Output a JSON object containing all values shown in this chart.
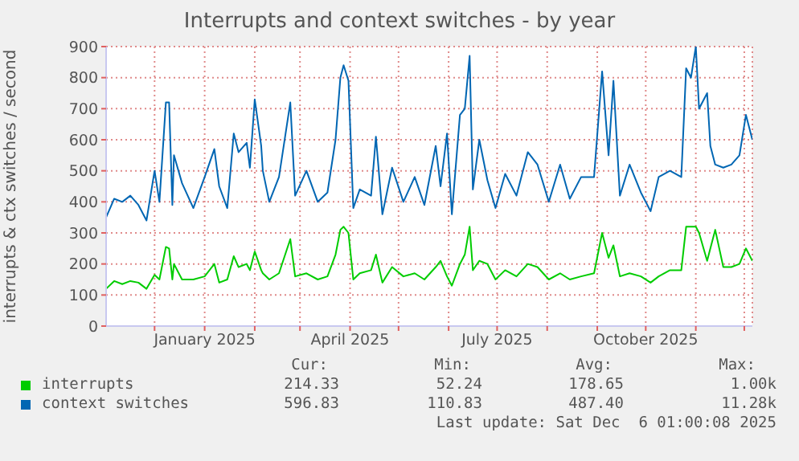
{
  "chart_data": {
    "type": "line",
    "title": "Interrupts and context switches - by year",
    "ylabel": "interrupts & ctx switches / second",
    "x": [
      "2024-11-01",
      "2024-11-06",
      "2024-11-11",
      "2024-11-16",
      "2024-11-21",
      "2024-11-26",
      "2024-12-01",
      "2024-12-04",
      "2024-12-08",
      "2024-12-10",
      "2024-12-12",
      "2024-12-13",
      "2024-12-18",
      "2024-12-25",
      "2025-01-01",
      "2025-01-07",
      "2025-01-10",
      "2025-01-15",
      "2025-01-19",
      "2025-01-22",
      "2025-01-27",
      "2025-01-29",
      "2025-02-01",
      "2025-02-05",
      "2025-02-06",
      "2025-02-10",
      "2025-02-16",
      "2025-02-23",
      "2025-02-26",
      "2025-03-05",
      "2025-03-12",
      "2025-03-18",
      "2025-03-23",
      "2025-03-26",
      "2025-03-28",
      "2025-03-31",
      "2025-04-03",
      "2025-04-07",
      "2025-04-14",
      "2025-04-17",
      "2025-04-21",
      "2025-04-27",
      "2025-05-04",
      "2025-05-11",
      "2025-05-17",
      "2025-05-24",
      "2025-05-27",
      "2025-05-31",
      "2025-06-03",
      "2025-06-08",
      "2025-06-11",
      "2025-06-14",
      "2025-06-16",
      "2025-06-20",
      "2025-06-25",
      "2025-06-30",
      "2025-07-06",
      "2025-07-13",
      "2025-07-20",
      "2025-07-26",
      "2025-08-02",
      "2025-08-09",
      "2025-08-15",
      "2025-08-22",
      "2025-08-30",
      "2025-09-04",
      "2025-09-08",
      "2025-09-11",
      "2025-09-15",
      "2025-09-21",
      "2025-09-28",
      "2025-10-04",
      "2025-10-09",
      "2025-10-16",
      "2025-10-23",
      "2025-10-26",
      "2025-10-29",
      "2025-11-01",
      "2025-11-03",
      "2025-11-08",
      "2025-11-10",
      "2025-11-13",
      "2025-11-18",
      "2025-11-23",
      "2025-11-28",
      "2025-12-02",
      "2025-12-06"
    ],
    "series": [
      {
        "name": "interrupts",
        "color": "#00cc00",
        "values": [
          120,
          145,
          135,
          145,
          140,
          120,
          165,
          150,
          255,
          250,
          150,
          200,
          150,
          150,
          160,
          200,
          140,
          150,
          225,
          190,
          200,
          180,
          240,
          180,
          170,
          150,
          170,
          280,
          160,
          170,
          150,
          160,
          230,
          310,
          320,
          300,
          150,
          170,
          180,
          230,
          140,
          190,
          160,
          170,
          150,
          190,
          210,
          160,
          130,
          200,
          230,
          320,
          180,
          210,
          200,
          150,
          180,
          160,
          200,
          190,
          150,
          170,
          150,
          160,
          170,
          300,
          220,
          260,
          160,
          170,
          160,
          140,
          160,
          180,
          180,
          320,
          320,
          320,
          300,
          210,
          250,
          310,
          190,
          190,
          200,
          250,
          210
        ]
      },
      {
        "name": "context switches",
        "color": "#0066b3",
        "values": [
          350,
          410,
          400,
          420,
          390,
          340,
          500,
          400,
          720,
          720,
          390,
          550,
          460,
          380,
          480,
          570,
          450,
          380,
          620,
          560,
          590,
          510,
          730,
          580,
          500,
          400,
          480,
          720,
          420,
          500,
          400,
          430,
          600,
          800,
          840,
          790,
          380,
          440,
          420,
          610,
          360,
          510,
          400,
          480,
          390,
          580,
          450,
          620,
          360,
          680,
          700,
          870,
          440,
          600,
          470,
          380,
          490,
          420,
          560,
          520,
          400,
          520,
          410,
          480,
          480,
          820,
          550,
          790,
          420,
          520,
          430,
          370,
          480,
          500,
          480,
          830,
          800,
          900,
          700,
          750,
          580,
          520,
          510,
          520,
          550,
          680,
          600
        ]
      }
    ],
    "xlim": [
      "2024-11-01",
      "2025-12-06"
    ],
    "xticks": [
      {
        "value": "2024-12-01",
        "label": null
      },
      {
        "value": "2025-01-01",
        "label": "January 2025"
      },
      {
        "value": "2025-02-01",
        "label": null
      },
      {
        "value": "2025-03-01",
        "label": null
      },
      {
        "value": "2025-04-01",
        "label": "April 2025"
      },
      {
        "value": "2025-05-01",
        "label": null
      },
      {
        "value": "2025-06-01",
        "label": null
      },
      {
        "value": "2025-07-01",
        "label": "July 2025"
      },
      {
        "value": "2025-08-01",
        "label": null
      },
      {
        "value": "2025-09-01",
        "label": null
      },
      {
        "value": "2025-10-01",
        "label": "October 2025"
      },
      {
        "value": "2025-11-01",
        "label": null
      },
      {
        "value": "2025-12-01",
        "label": null
      }
    ],
    "ylim": [
      0,
      900
    ],
    "yticks": [
      0,
      100,
      200,
      300,
      400,
      500,
      600,
      700,
      800,
      900
    ],
    "grid": true,
    "legend": "bottom",
    "marker": "none",
    "line_style": "solid",
    "annotations": [
      "Cur:",
      "Min:",
      "Avg:",
      "Max:",
      "214.33",
      "52.24",
      "178.65",
      "1.00k",
      "596.83",
      "110.83",
      "487.40",
      "11.28k",
      "Last update: Sat Dec  6 01:00:08 2025"
    ]
  }
}
